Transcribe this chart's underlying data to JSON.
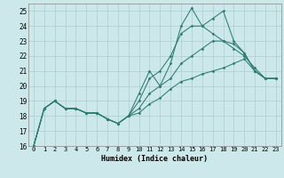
{
  "xlabel": "Humidex (Indice chaleur)",
  "background_color": "#cce8ea",
  "grid_color": "#aaccce",
  "line_color": "#2e7b72",
  "xlim": [
    -0.5,
    23.5
  ],
  "ylim": [
    16,
    25.5
  ],
  "xticks": [
    0,
    1,
    2,
    3,
    4,
    5,
    6,
    7,
    8,
    9,
    10,
    11,
    12,
    13,
    14,
    15,
    16,
    17,
    18,
    19,
    20,
    21,
    22,
    23
  ],
  "yticks": [
    16,
    17,
    18,
    19,
    20,
    21,
    22,
    23,
    24,
    25
  ],
  "series": [
    [
      16.0,
      18.5,
      19.0,
      18.5,
      18.5,
      18.2,
      18.2,
      17.8,
      17.5,
      18.0,
      19.5,
      21.0,
      20.0,
      21.5,
      24.0,
      25.2,
      24.0,
      24.5,
      25.0,
      23.0,
      22.2,
      21.0,
      20.5,
      20.5
    ],
    [
      16.0,
      18.5,
      19.0,
      18.5,
      18.5,
      18.2,
      18.2,
      17.8,
      17.5,
      18.0,
      19.0,
      20.5,
      21.0,
      22.0,
      23.5,
      24.0,
      24.0,
      23.5,
      23.0,
      22.5,
      22.0,
      21.2,
      20.5,
      20.5
    ],
    [
      16.0,
      18.5,
      19.0,
      18.5,
      18.5,
      18.2,
      18.2,
      17.8,
      17.5,
      18.0,
      18.5,
      19.5,
      20.0,
      20.5,
      21.5,
      22.0,
      22.5,
      23.0,
      23.0,
      22.8,
      22.2,
      21.0,
      20.5,
      20.5
    ],
    [
      16.0,
      18.5,
      19.0,
      18.5,
      18.5,
      18.2,
      18.2,
      17.8,
      17.5,
      18.0,
      18.2,
      18.8,
      19.2,
      19.8,
      20.3,
      20.5,
      20.8,
      21.0,
      21.2,
      21.5,
      21.8,
      21.0,
      20.5,
      20.5
    ]
  ],
  "xtick_fontsize": 5.0,
  "ytick_fontsize": 5.5,
  "xlabel_fontsize": 6.0
}
